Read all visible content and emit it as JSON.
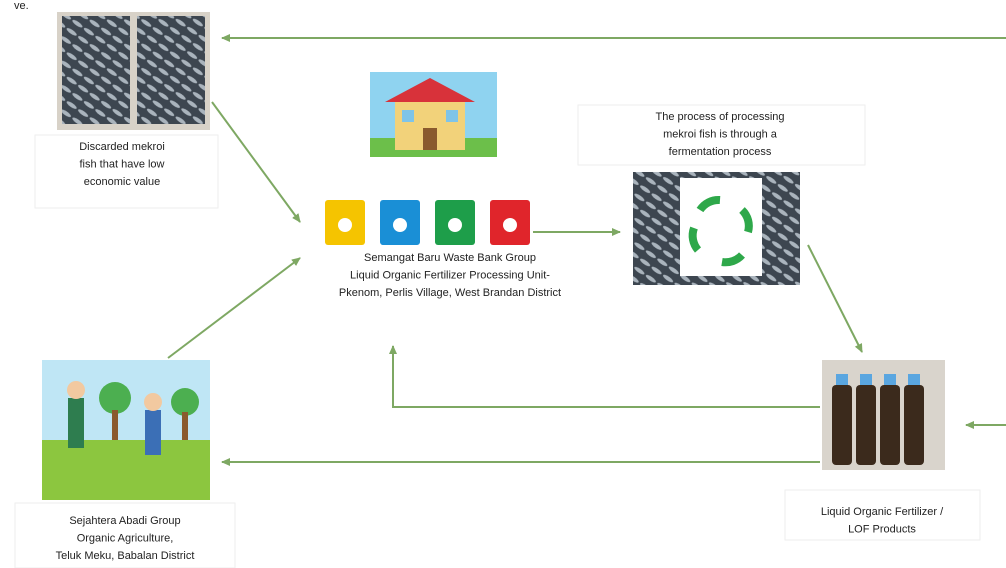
{
  "corner_text": "ve.",
  "nodes": [
    {
      "label": [
        "Discarded mekroi",
        "fish that have low",
        "economic value"
      ]
    },
    {
      "label": [
        "Semangat Baru Waste Bank Group",
        "Liquid Organic Fertilizer Processing Unit-",
        "Pkenom, Perlis Village, West Brandan District"
      ]
    },
    {
      "label": [
        "The process of processing",
        "mekroi fish is through a",
        "fermentation process"
      ]
    },
    {
      "label": [
        "Liquid Organic Fertilizer /",
        "LOF Products"
      ]
    },
    {
      "label": [
        "Sejahtera Abadi Group",
        "Organic Agriculture,",
        "Teluk Meku, Babalan District"
      ]
    }
  ]
}
